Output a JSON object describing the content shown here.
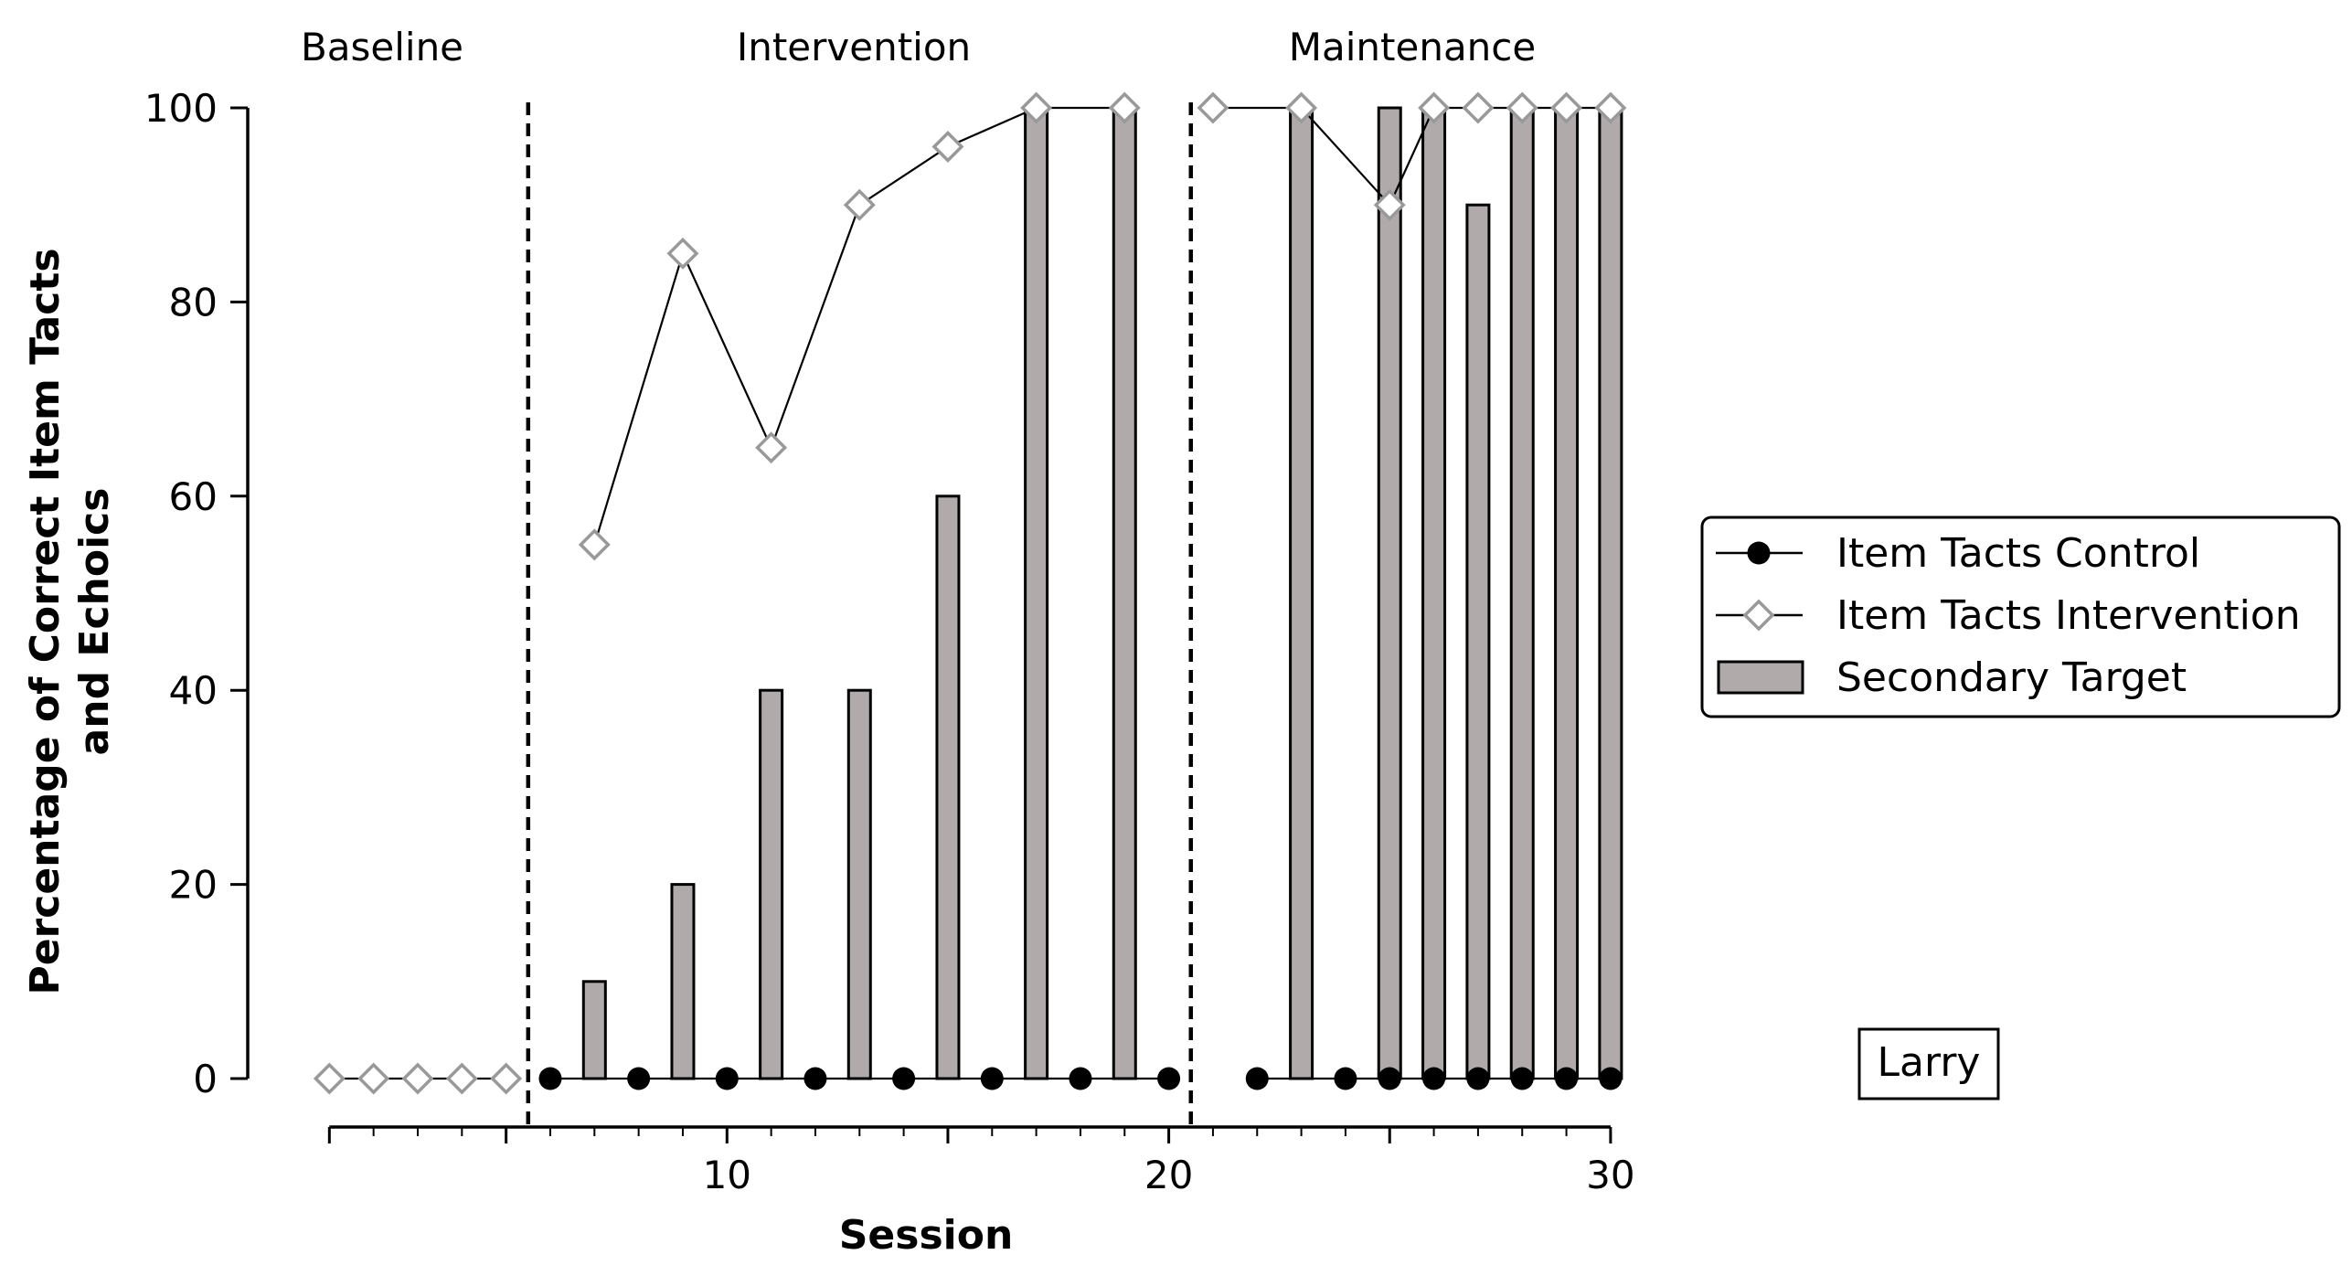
{
  "chart_data": {
    "type": "bar",
    "title": "",
    "xlabel": "Session",
    "ylabel_lines": [
      "Percentage of Correct Item Tacts",
      "and Echoics"
    ],
    "xlim": [
      0,
      30
    ],
    "ylim": [
      0,
      100
    ],
    "xticks": [
      10,
      20,
      30
    ],
    "yticks": [
      0,
      20,
      40,
      60,
      80,
      100
    ],
    "phases": [
      {
        "label": "Baseline",
        "start": 0,
        "end": 5.5
      },
      {
        "label": "Intervention",
        "start": 5.5,
        "end": 20.5
      },
      {
        "label": "Maintenance",
        "start": 20.5,
        "end": 30
      }
    ],
    "phase_change_lines": [
      5.5,
      20.5
    ],
    "series": [
      {
        "name": "Item Tacts Control",
        "kind": "line",
        "marker": "filled-circle",
        "color": "#000000",
        "segments": [
          [
            [
              6,
              0
            ],
            [
              8,
              0
            ],
            [
              10,
              0
            ],
            [
              12,
              0
            ],
            [
              14,
              0
            ],
            [
              16,
              0
            ],
            [
              18,
              0
            ],
            [
              20,
              0
            ]
          ],
          [
            [
              22,
              0
            ],
            [
              24,
              0
            ],
            [
              25,
              0
            ],
            [
              26,
              0
            ],
            [
              27,
              0
            ],
            [
              28,
              0
            ],
            [
              29,
              0
            ],
            [
              30,
              0
            ]
          ]
        ]
      },
      {
        "name": "Item Tacts Intervention",
        "kind": "line",
        "marker": "open-diamond",
        "color": "#999999",
        "segments": [
          [
            [
              1,
              0
            ],
            [
              2,
              0
            ],
            [
              3,
              0
            ],
            [
              4,
              0
            ],
            [
              5,
              0
            ]
          ],
          [
            [
              7,
              55
            ],
            [
              9,
              85
            ],
            [
              11,
              65
            ],
            [
              13,
              90
            ],
            [
              15,
              96
            ],
            [
              17,
              100
            ],
            [
              19,
              100
            ]
          ],
          [
            [
              21,
              100
            ],
            [
              23,
              100
            ],
            [
              25,
              90
            ],
            [
              26,
              100
            ],
            [
              27,
              100
            ],
            [
              28,
              100
            ],
            [
              29,
              100
            ],
            [
              30,
              100
            ]
          ]
        ]
      },
      {
        "name": "Secondary Target",
        "kind": "bar",
        "color": "#b0aaaa",
        "points": [
          [
            7,
            10
          ],
          [
            9,
            20
          ],
          [
            11,
            40
          ],
          [
            13,
            40
          ],
          [
            15,
            60
          ],
          [
            17,
            100
          ],
          [
            19,
            100
          ],
          [
            23,
            100
          ],
          [
            25,
            100
          ],
          [
            26,
            100
          ],
          [
            27,
            90
          ],
          [
            28,
            100
          ],
          [
            29,
            100
          ],
          [
            30,
            100
          ]
        ]
      }
    ],
    "legend": {
      "placement": "right",
      "items": [
        "Item Tacts Control",
        "Item Tacts Intervention",
        "Secondary Target"
      ]
    },
    "participant_label": "Larry"
  },
  "colors": {
    "control": "#000000",
    "intervention": "#999999",
    "bar_fill": "#b0aaaa",
    "axis": "#000000"
  }
}
